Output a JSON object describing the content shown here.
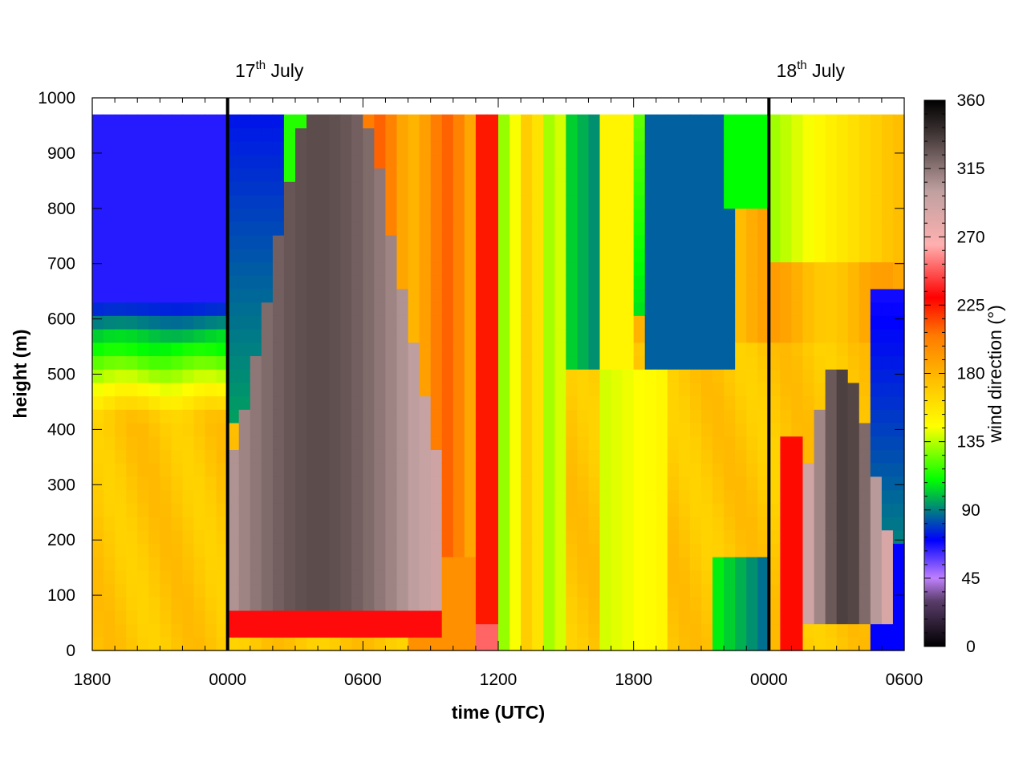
{
  "chart_data": {
    "type": "heatmap",
    "title": "",
    "xlabel": "time (UTC)",
    "ylabel": "height (m)",
    "x_ticks": [
      "1800",
      "0000",
      "0600",
      "1200",
      "1800",
      "0000",
      "0600"
    ],
    "x_range_hours": [
      0,
      36
    ],
    "y_ticks": [
      "0",
      "100",
      "200",
      "300",
      "400",
      "500",
      "600",
      "700",
      "800",
      "900",
      "1000"
    ],
    "ylim": [
      0,
      1000
    ],
    "data_top_m": 970,
    "colorbar": {
      "label": "wind direction (°)",
      "ticks": [
        "0",
        "45",
        "90",
        "135",
        "180",
        "225",
        "270",
        "315",
        "360"
      ],
      "range": [
        0,
        360
      ],
      "colors": {
        "0": "#000000",
        "30": "#5a3d6a",
        "45": "#c080ff",
        "70": "#0000ff",
        "90": "#008080",
        "110": "#00ff00",
        "145": "#ffff00",
        "175": "#ffc000",
        "205": "#ff7a00",
        "230": "#ff0000",
        "265": "#ffb0b0",
        "300": "#c0a0a0",
        "340": "#3a3030",
        "360": "#000000"
      }
    },
    "annotations": [
      {
        "date": "17",
        "suffix": "th",
        "month": "July",
        "at_hours": 6
      },
      {
        "date": "18",
        "suffix": "th",
        "month": "July",
        "at_hours": 30
      }
    ],
    "grid": false,
    "legend": "colorbar-right"
  }
}
